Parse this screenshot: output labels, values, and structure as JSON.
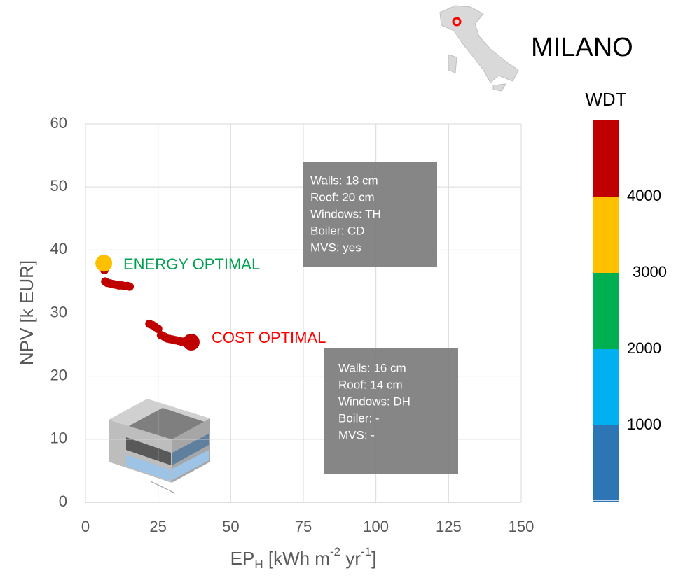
{
  "chart_data": {
    "type": "scatter",
    "xlabel": [
      {
        "text": "EP"
      },
      {
        "text": "H",
        "shift": "sub"
      },
      {
        "text": " [kWh m"
      },
      {
        "text": "-2",
        "shift": "sup"
      },
      {
        "text": " yr"
      },
      {
        "text": "-1",
        "shift": "sup"
      },
      {
        "text": "]"
      }
    ],
    "ylabel": "NPV [k EUR]",
    "xlim": [
      0,
      150
    ],
    "xticks": [
      0,
      25,
      50,
      75,
      100,
      125,
      150
    ],
    "ylim": [
      0,
      60
    ],
    "yticks": [
      0,
      10,
      20,
      30,
      40,
      50,
      60
    ],
    "grid": true,
    "series": [
      {
        "color": "#c00000",
        "marker": "small",
        "x": [
          6.5,
          6.8,
          7.5,
          8.5,
          9.5,
          10.5,
          11.5,
          12.5,
          13.5,
          14.5,
          15.2,
          22,
          23,
          24,
          25,
          26,
          27,
          28,
          29,
          30,
          31,
          32,
          33,
          34,
          35,
          36
        ],
        "y": [
          36.8,
          35.0,
          34.8,
          34.7,
          34.6,
          34.5,
          34.4,
          34.4,
          34.3,
          34.3,
          34.2,
          28.3,
          28.1,
          27.8,
          27.5,
          26.5,
          26.3,
          26.0,
          25.9,
          25.8,
          25.7,
          25.6,
          25.5,
          25.5,
          25.4,
          25.4
        ]
      },
      {
        "color": "#ffc000",
        "marker": "large",
        "x": [
          6.3
        ],
        "y": [
          37.9
        ]
      },
      {
        "color": "#c00000",
        "marker": "large",
        "x": [
          36.4
        ],
        "y": [
          25.4
        ]
      }
    ],
    "annotations": [
      {
        "text": "ENERGY OPTIMAL",
        "color": "#00a050"
      },
      {
        "text": "COST OPTIMAL",
        "color": "#ff0000"
      }
    ],
    "boxes": [
      {
        "lines": [
          "Walls: 18 cm",
          "Roof: 20 cm",
          "Windows: TH",
          "Boiler: CD",
          "MVS: yes"
        ]
      },
      {
        "lines": [
          "Walls: 16 cm",
          "Roof: 14 cm",
          "Windows: DH",
          "Boiler: -",
          "MVS: -"
        ]
      }
    ],
    "city": "MILANO",
    "colorbar": {
      "title": "WDT",
      "lim": [
        0,
        5000
      ],
      "ticks": [
        1000,
        2000,
        3000,
        4000
      ],
      "colors": [
        "#2e75b6",
        "#00b0f0",
        "#00b050",
        "#ffc000",
        "#c00000"
      ]
    }
  }
}
